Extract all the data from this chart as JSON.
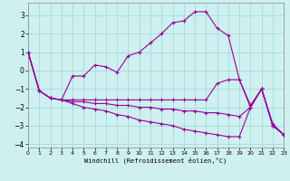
{
  "xlabel": "Windchill (Refroidissement éolien,°C)",
  "bg_color": "#cef0f0",
  "grid_color": "#aadddd",
  "line_color": "#990099",
  "xlim": [
    0,
    23
  ],
  "ylim": [
    -4.2,
    3.7
  ],
  "yticks": [
    -4,
    -3,
    -2,
    -1,
    0,
    1,
    2,
    3
  ],
  "xticks": [
    0,
    1,
    2,
    3,
    4,
    5,
    6,
    7,
    8,
    9,
    10,
    11,
    12,
    13,
    14,
    15,
    16,
    17,
    18,
    19,
    20,
    21,
    22,
    23
  ],
  "x": [
    0,
    1,
    2,
    3,
    4,
    5,
    6,
    7,
    8,
    9,
    10,
    11,
    12,
    13,
    14,
    15,
    16,
    17,
    18,
    19,
    20,
    21,
    22,
    23
  ],
  "lines": [
    [
      1.0,
      -1.1,
      -1.5,
      -1.6,
      -0.3,
      -0.3,
      0.3,
      0.2,
      -0.1,
      0.8,
      1.0,
      1.5,
      2.0,
      2.6,
      2.7,
      3.2,
      3.2,
      2.3,
      1.9,
      -0.5,
      -1.9,
      -1.0,
      -2.9,
      -3.5
    ],
    [
      1.0,
      -1.1,
      -1.5,
      -1.6,
      -1.6,
      -1.6,
      -1.6,
      -1.6,
      -1.6,
      -1.6,
      -1.6,
      -1.6,
      -1.6,
      -1.6,
      -1.6,
      -1.6,
      -1.6,
      -0.7,
      -0.5,
      -0.5,
      -2.0,
      -1.0,
      -3.0,
      -3.5
    ],
    [
      1.0,
      -1.1,
      -1.5,
      -1.6,
      -1.7,
      -1.7,
      -1.8,
      -1.8,
      -1.9,
      -1.9,
      -2.0,
      -2.0,
      -2.1,
      -2.1,
      -2.2,
      -2.2,
      -2.3,
      -2.3,
      -2.4,
      -2.5,
      -2.0,
      -1.0,
      -3.0,
      -3.5
    ],
    [
      1.0,
      -1.1,
      -1.5,
      -1.6,
      -1.8,
      -2.0,
      -2.1,
      -2.2,
      -2.4,
      -2.5,
      -2.7,
      -2.8,
      -2.9,
      -3.0,
      -3.2,
      -3.3,
      -3.4,
      -3.5,
      -3.6,
      -3.6,
      -2.0,
      -1.0,
      -3.0,
      -3.5
    ]
  ]
}
